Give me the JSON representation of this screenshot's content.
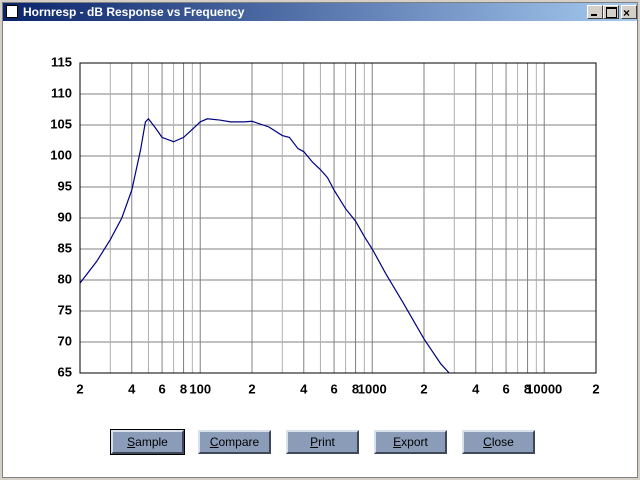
{
  "window": {
    "title": "Hornresp - dB Response vs Frequency"
  },
  "buttons": [
    "Sample",
    "Compare",
    "Print",
    "Export",
    "Close"
  ],
  "chart_data": {
    "type": "line",
    "log_x": true,
    "grid": true,
    "color": "#000080",
    "x": [
      20,
      25,
      30,
      35,
      40,
      45,
      48,
      50,
      55,
      60,
      70,
      80,
      90,
      100,
      110,
      130,
      150,
      180,
      200,
      250,
      300,
      330,
      370,
      400,
      450,
      500,
      550,
      600,
      700,
      800,
      900,
      1000,
      1200,
      1500,
      2000,
      2500,
      2800
    ],
    "values": [
      79.5,
      83,
      86.5,
      90,
      94.5,
      101,
      105.5,
      106,
      104.5,
      103,
      102.3,
      103,
      104.3,
      105.5,
      106,
      105.8,
      105.5,
      105.5,
      105.6,
      104.7,
      103.3,
      103,
      101.2,
      100.7,
      99,
      97.8,
      96.5,
      94.5,
      91.5,
      89.5,
      87,
      85,
      81,
      76.5,
      70.5,
      66.5,
      65
    ],
    "xlim": [
      20,
      20000
    ],
    "ylim": [
      65,
      115
    ],
    "xticks": [
      {
        "value": 20,
        "label": "2"
      },
      {
        "value": 40,
        "label": "4"
      },
      {
        "value": 60,
        "label": "6"
      },
      {
        "value": 80,
        "label": "8"
      },
      100,
      {
        "value": 200,
        "label": "2"
      },
      {
        "value": 400,
        "label": "4"
      },
      {
        "value": 600,
        "label": "6"
      },
      {
        "value": 800,
        "label": "8"
      },
      1000,
      {
        "value": 2000,
        "label": "2"
      },
      {
        "value": 4000,
        "label": "4"
      },
      {
        "value": 6000,
        "label": "6"
      },
      {
        "value": 8000,
        "label": "8"
      },
      10000,
      {
        "value": 20000,
        "label": "2"
      }
    ],
    "minor_xticks": [
      30,
      50,
      70,
      90,
      300,
      500,
      700,
      900,
      3000,
      5000,
      7000,
      9000
    ],
    "yticks": [
      65,
      70,
      75,
      80,
      85,
      90,
      95,
      100,
      105,
      110,
      115
    ]
  }
}
